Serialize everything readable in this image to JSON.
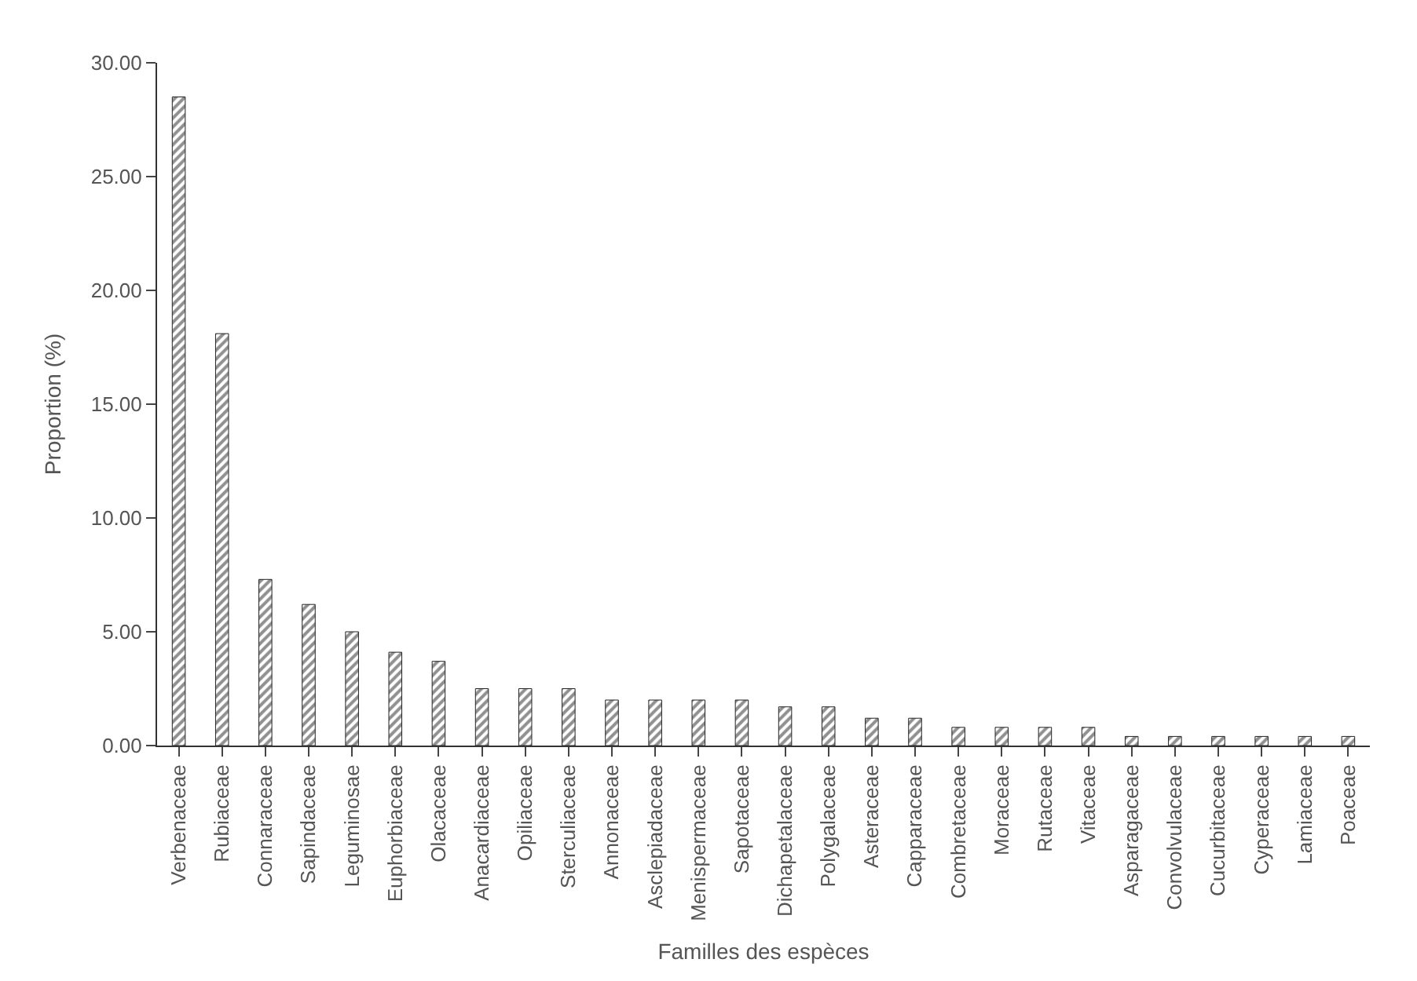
{
  "chart_data": {
    "type": "bar",
    "xlabel": "Familles des espèces",
    "ylabel": "Proportion (%)",
    "categories": [
      "Verbenaceae",
      "Rubiaceae",
      "Connaraceae",
      "Sapindaceae",
      "Leguminosae",
      "Euphorbiaceae",
      "Olacaceae",
      "Anacardiaceae",
      "Opiliaceae",
      "Sterculiaceae",
      "Annonaceae",
      "Asclepiadaceae",
      "Menispermaceae",
      "Sapotaceae",
      "Dichapetalaceae",
      "Polygalaceae",
      "Asteraceae",
      "Capparaceae",
      "Combretaceae",
      "Moraceae",
      "Rutaceae",
      "Vitaceae",
      "Asparagaceae",
      "Convolvulaceae",
      "Cucurbitaceae",
      "Cyperaceae",
      "Lamiaceae",
      "Poaceae"
    ],
    "values": [
      28.5,
      18.1,
      7.3,
      6.2,
      5.0,
      4.1,
      3.7,
      2.5,
      2.5,
      2.5,
      2.0,
      2.0,
      2.0,
      2.0,
      1.7,
      1.7,
      1.2,
      1.2,
      0.8,
      0.8,
      0.8,
      0.8,
      0.4,
      0.4,
      0.4,
      0.4,
      0.4,
      0.4
    ],
    "color": "#222222",
    "ylim": [
      0,
      30
    ],
    "yticks": [
      {
        "value": 0,
        "label": "0.00"
      },
      {
        "value": 5,
        "label": "5.00"
      },
      {
        "value": 10,
        "label": "10.00"
      },
      {
        "value": 15,
        "label": "15.00"
      },
      {
        "value": 20,
        "label": "20.00"
      },
      {
        "value": 25,
        "label": "25.00"
      },
      {
        "value": 30,
        "label": "30.00"
      }
    ],
    "tick_labels": "xy"
  }
}
